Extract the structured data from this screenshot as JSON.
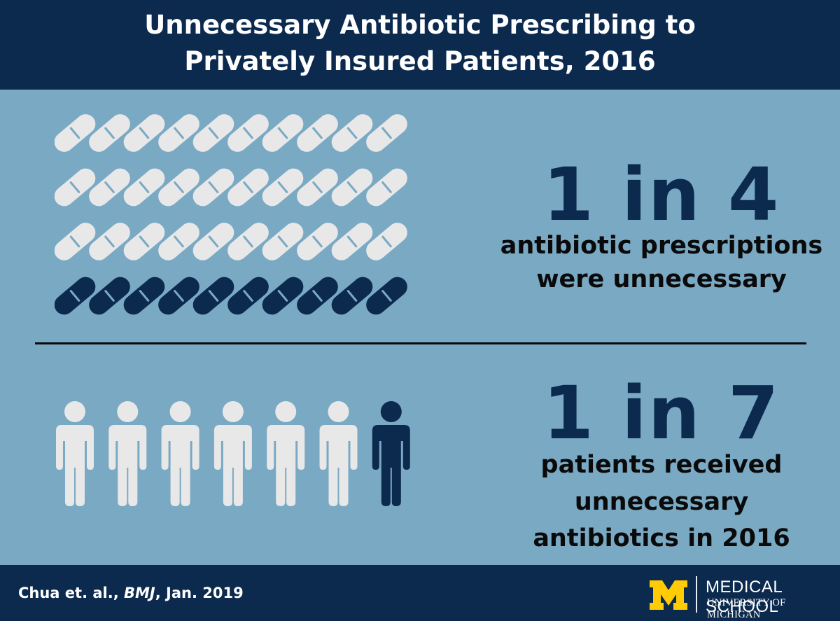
{
  "header": {
    "title_line1": "Unnecessary Antibiotic Prescribing to",
    "title_line2": "Privately Insured Patients, 2016"
  },
  "colors": {
    "background": "#7aa9c4",
    "navy": "#0b2a4e",
    "light_icon": "#e8e8e8",
    "maize": "#ffcb05"
  },
  "pill_grid": {
    "icon": "pill-icon",
    "rows": 4,
    "columns": 10,
    "highlighted_rows": 1
  },
  "stat1": {
    "big": "1 in 4",
    "line1": "antibiotic prescriptions",
    "line2": "were unnecessary"
  },
  "people_row": {
    "icon": "person-icon",
    "count": 7,
    "highlighted": 1
  },
  "stat2": {
    "big": "1 in 7",
    "line1": "patients received",
    "line2": "unnecessary",
    "line3": "antibiotics in 2016"
  },
  "footer": {
    "citation_pre": "Chua et. al., ",
    "citation_journal": "BMJ",
    "citation_post": ", Jan. 2019",
    "logo_mark": "M",
    "logo_line1": "MEDICAL SCHOOL",
    "logo_line2": "UNIVERSITY OF MICHIGAN"
  }
}
